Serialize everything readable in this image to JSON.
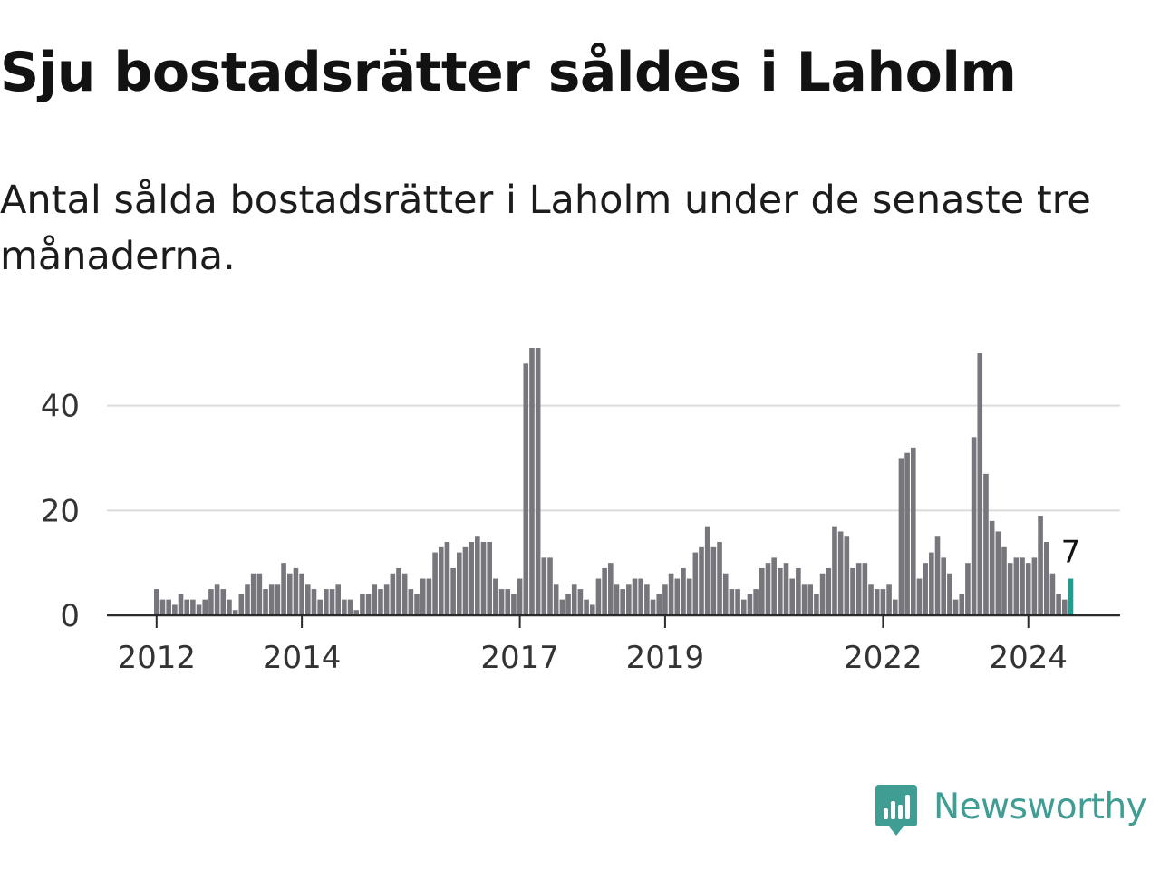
{
  "title": "Sju bostadsrätter såldes i Laholm",
  "subtitle": "Antal sålda bostadsrätter i Laholm under de senaste tre månaderna.",
  "brand": {
    "name": "Newsworthy",
    "icon": "newsworthy-logo-icon",
    "color": "#3f9d93"
  },
  "chart_data": {
    "type": "bar",
    "title": "",
    "xlabel": "",
    "ylabel": "",
    "ylim": [
      0,
      51
    ],
    "yticks": [
      0,
      20,
      40
    ],
    "x_start": "2012-01",
    "x_tick_labels": [
      "2012",
      "2014",
      "2017",
      "2019",
      "2022",
      "2024"
    ],
    "x_tick_dates": [
      "2012-01",
      "2014-01",
      "2017-01",
      "2019-01",
      "2022-01",
      "2024-01"
    ],
    "grid": "horizontal",
    "bar_color": "#77767c",
    "highlight_color": "#1f9d8e",
    "highlight_last": true,
    "last_label": "7",
    "values": [
      5,
      3,
      3,
      2,
      4,
      3,
      3,
      2,
      3,
      5,
      6,
      5,
      3,
      1,
      4,
      6,
      8,
      8,
      5,
      6,
      6,
      10,
      8,
      9,
      8,
      6,
      5,
      3,
      5,
      5,
      6,
      3,
      3,
      1,
      4,
      4,
      6,
      5,
      6,
      8,
      9,
      8,
      5,
      4,
      7,
      7,
      12,
      13,
      14,
      9,
      12,
      13,
      14,
      15,
      14,
      14,
      7,
      5,
      5,
      4,
      7,
      48,
      51,
      51,
      11,
      11,
      6,
      3,
      4,
      6,
      5,
      3,
      2,
      7,
      9,
      10,
      6,
      5,
      6,
      7,
      7,
      6,
      3,
      4,
      6,
      8,
      7,
      9,
      7,
      12,
      13,
      17,
      13,
      14,
      8,
      5,
      5,
      3,
      4,
      5,
      9,
      10,
      11,
      9,
      10,
      7,
      9,
      6,
      6,
      4,
      8,
      9,
      17,
      16,
      15,
      9,
      10,
      10,
      6,
      5,
      5,
      6,
      3,
      30,
      31,
      32,
      7,
      10,
      12,
      15,
      11,
      8,
      3,
      4,
      10,
      34,
      50,
      27,
      18,
      16,
      13,
      10,
      11,
      11,
      10,
      11,
      19,
      14,
      8,
      4,
      3,
      7
    ]
  }
}
